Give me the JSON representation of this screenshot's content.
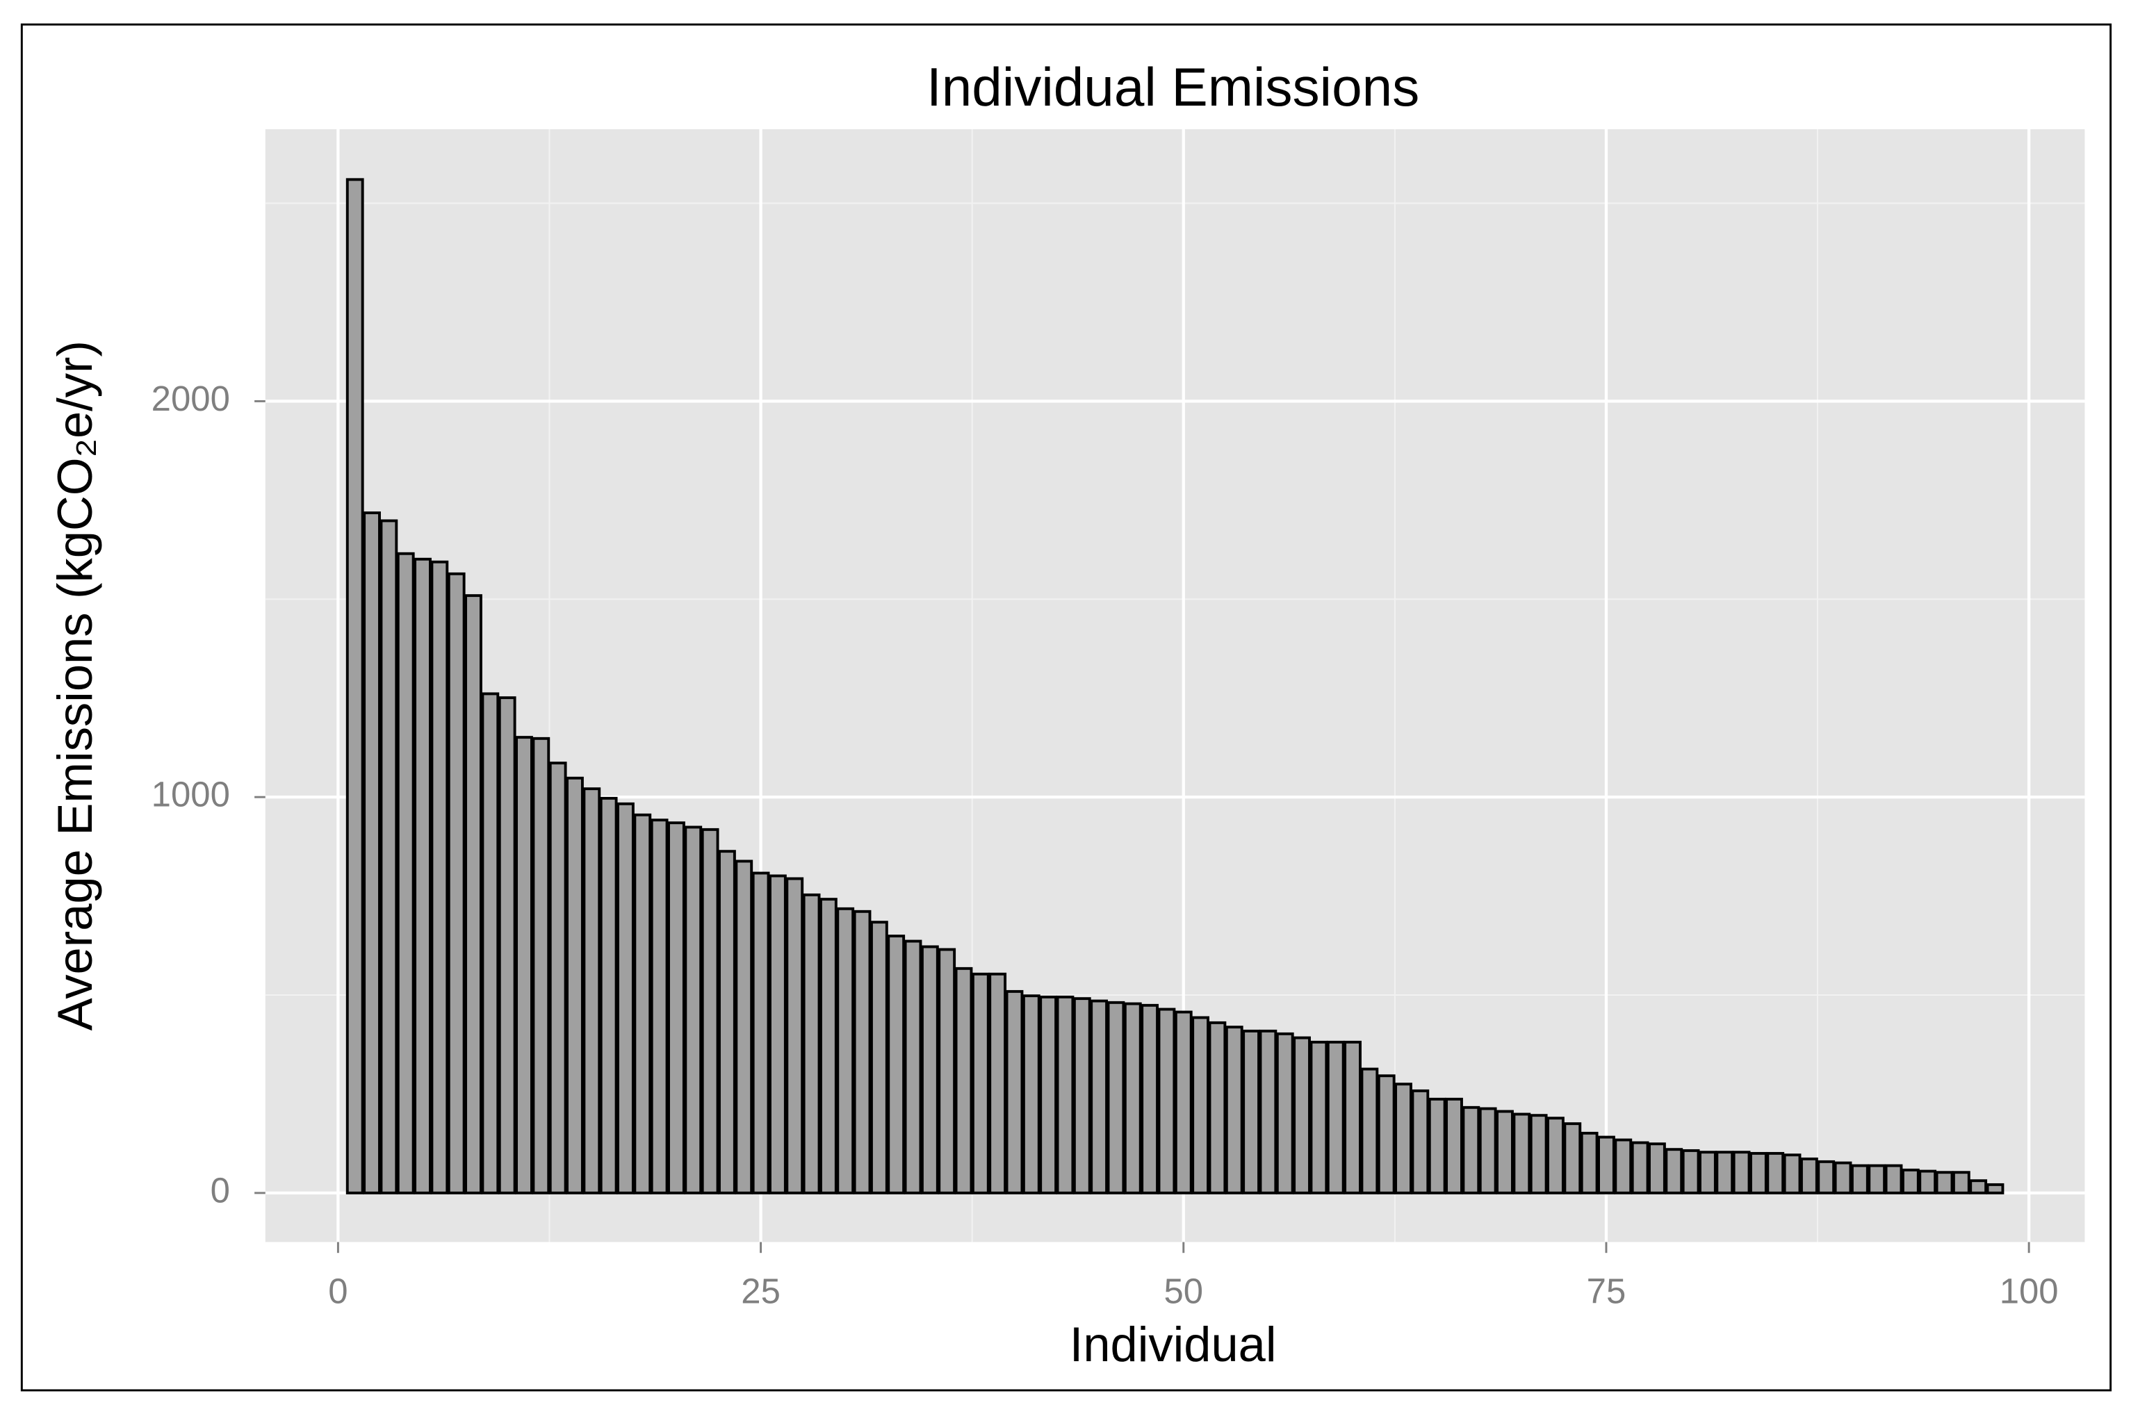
{
  "chart_data": {
    "type": "bar",
    "title": "Individual Emissions",
    "x_label": "Individual",
    "y_label": "Average Emissions (kgCO₂e/yr)",
    "x": [
      1,
      2,
      3,
      4,
      5,
      6,
      7,
      8,
      9,
      10,
      11,
      12,
      13,
      14,
      15,
      16,
      17,
      18,
      19,
      20,
      21,
      22,
      23,
      24,
      25,
      26,
      27,
      28,
      29,
      30,
      31,
      32,
      33,
      34,
      35,
      36,
      37,
      38,
      39,
      40,
      41,
      42,
      43,
      44,
      45,
      46,
      47,
      48,
      49,
      50,
      51,
      52,
      53,
      54,
      55,
      56,
      57,
      58,
      59,
      60,
      61,
      62,
      63,
      64,
      65,
      66,
      67,
      68,
      69,
      70,
      71,
      72,
      73,
      74,
      75,
      76,
      77,
      78,
      79,
      80,
      81,
      82,
      83,
      84,
      85,
      86,
      87,
      88,
      89,
      90,
      91,
      92,
      93,
      94,
      95,
      96,
      97,
      98
    ],
    "values": [
      2560,
      1718,
      1698,
      1615,
      1601,
      1594,
      1564,
      1509,
      1261,
      1251,
      1151,
      1148,
      1086,
      1048,
      1021,
      997,
      983,
      955,
      942,
      935,
      924,
      918,
      863,
      838,
      808,
      801,
      794,
      753,
      742,
      718,
      711,
      684,
      649,
      636,
      622,
      615,
      567,
      553,
      553,
      509,
      498,
      495,
      495,
      491,
      485,
      481,
      478,
      474,
      464,
      457,
      443,
      430,
      419,
      409,
      409,
      402,
      392,
      381,
      381,
      381,
      313,
      296,
      275,
      258,
      237,
      237,
      216,
      213,
      206,
      199,
      196,
      189,
      175,
      151,
      141,
      134,
      127,
      124,
      110,
      107,
      103,
      103,
      103,
      100,
      100,
      96,
      86,
      79,
      76,
      69,
      69,
      69,
      58,
      55,
      52,
      52,
      31,
      21
    ],
    "color": "#a0a0a0",
    "xlim": [
      -4.3,
      103.3
    ],
    "ylim": [
      -124,
      2687
    ],
    "xticks": [
      0,
      25,
      50,
      75,
      100
    ],
    "yticks": [
      0,
      1000,
      2000
    ],
    "xminor": [
      12.5,
      37.5,
      62.5,
      87.5
    ],
    "yminor": [
      500,
      1500,
      2500
    ],
    "grid": true
  }
}
